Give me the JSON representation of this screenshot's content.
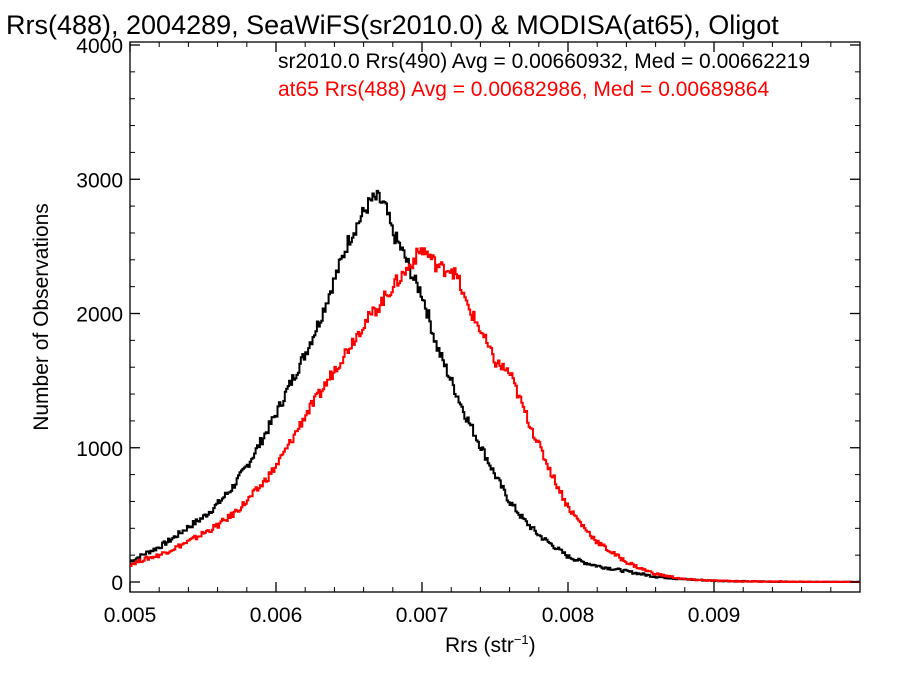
{
  "chart_data": {
    "type": "line",
    "title": "Rrs(488), 2004289, SeaWiFS(sr2010.0) & MODISA(at65), Oligot",
    "xlabel": "Rrs (str",
    "xlabel_sup": "−1",
    "xlabel_close": ")",
    "ylabel": "Number of Observations",
    "xlim": [
      0.005,
      0.01
    ],
    "ylim": [
      -60,
      4000
    ],
    "x_ticks": [
      0.005,
      0.006,
      0.007,
      0.008,
      0.009
    ],
    "x_tick_labels": [
      "0.005",
      "0.006",
      "0.007",
      "0.008",
      "0.009"
    ],
    "y_ticks": [
      0,
      1000,
      2000,
      3000,
      4000
    ],
    "y_tick_labels": [
      "0",
      "1000",
      "2000",
      "3000",
      "4000"
    ],
    "grid": false,
    "legend_position": "top-right",
    "series": [
      {
        "name": "sr2010.0 Rrs(490) Avg = 0.00660932, Med = 0.00662219",
        "color": "#000000",
        "step": true,
        "points": [
          [
            0.005,
            150
          ],
          [
            0.0051,
            210
          ],
          [
            0.0052,
            260
          ],
          [
            0.0053,
            330
          ],
          [
            0.0054,
            410
          ],
          [
            0.0055,
            480
          ],
          [
            0.0056,
            580
          ],
          [
            0.0057,
            700
          ],
          [
            0.0058,
            860
          ],
          [
            0.0059,
            1050
          ],
          [
            0.006,
            1250
          ],
          [
            0.0061,
            1480
          ],
          [
            0.0062,
            1700
          ],
          [
            0.0063,
            1950
          ],
          [
            0.0064,
            2250
          ],
          [
            0.0065,
            2550
          ],
          [
            0.0066,
            2750
          ],
          [
            0.00665,
            2840
          ],
          [
            0.0067,
            2860
          ],
          [
            0.00675,
            2790
          ],
          [
            0.0068,
            2600
          ],
          [
            0.00685,
            2500
          ],
          [
            0.0069,
            2380
          ],
          [
            0.00695,
            2240
          ],
          [
            0.007,
            2150
          ],
          [
            0.00705,
            1960
          ],
          [
            0.0071,
            1760
          ],
          [
            0.0072,
            1500
          ],
          [
            0.0073,
            1240
          ],
          [
            0.0074,
            1020
          ],
          [
            0.0075,
            800
          ],
          [
            0.0076,
            600
          ],
          [
            0.0077,
            460
          ],
          [
            0.0078,
            350
          ],
          [
            0.0079,
            270
          ],
          [
            0.008,
            190
          ],
          [
            0.0081,
            150
          ],
          [
            0.0082,
            120
          ],
          [
            0.0083,
            100
          ],
          [
            0.0084,
            80
          ],
          [
            0.0085,
            60
          ],
          [
            0.0086,
            40
          ],
          [
            0.0087,
            30
          ],
          [
            0.0088,
            20
          ],
          [
            0.009,
            10
          ],
          [
            0.0092,
            5
          ],
          [
            0.0095,
            2
          ],
          [
            0.0099,
            0
          ]
        ]
      },
      {
        "name": "at65 Rrs(488) Avg = 0.00682986, Med = 0.00689864",
        "color": "#ff0000",
        "step": true,
        "points": [
          [
            0.005,
            130
          ],
          [
            0.0051,
            170
          ],
          [
            0.0052,
            200
          ],
          [
            0.0053,
            250
          ],
          [
            0.0054,
            300
          ],
          [
            0.0055,
            360
          ],
          [
            0.0056,
            420
          ],
          [
            0.0057,
            500
          ],
          [
            0.0058,
            600
          ],
          [
            0.0059,
            720
          ],
          [
            0.006,
            860
          ],
          [
            0.0061,
            1040
          ],
          [
            0.0062,
            1240
          ],
          [
            0.0063,
            1400
          ],
          [
            0.0064,
            1580
          ],
          [
            0.0065,
            1750
          ],
          [
            0.0066,
            1920
          ],
          [
            0.0067,
            2050
          ],
          [
            0.0068,
            2200
          ],
          [
            0.0069,
            2330
          ],
          [
            0.00695,
            2410
          ],
          [
            0.007,
            2480
          ],
          [
            0.00705,
            2430
          ],
          [
            0.0071,
            2360
          ],
          [
            0.00715,
            2330
          ],
          [
            0.0072,
            2340
          ],
          [
            0.00725,
            2250
          ],
          [
            0.0073,
            2080
          ],
          [
            0.0074,
            1880
          ],
          [
            0.0075,
            1640
          ],
          [
            0.0076,
            1560
          ],
          [
            0.0077,
            1280
          ],
          [
            0.0078,
            1020
          ],
          [
            0.0079,
            780
          ],
          [
            0.008,
            560
          ],
          [
            0.0081,
            420
          ],
          [
            0.0082,
            300
          ],
          [
            0.0083,
            220
          ],
          [
            0.0084,
            150
          ],
          [
            0.0085,
            100
          ],
          [
            0.0086,
            60
          ],
          [
            0.0087,
            40
          ],
          [
            0.0088,
            20
          ],
          [
            0.009,
            10
          ],
          [
            0.0092,
            5
          ],
          [
            0.0095,
            2
          ],
          [
            0.0099,
            0
          ]
        ]
      }
    ]
  }
}
